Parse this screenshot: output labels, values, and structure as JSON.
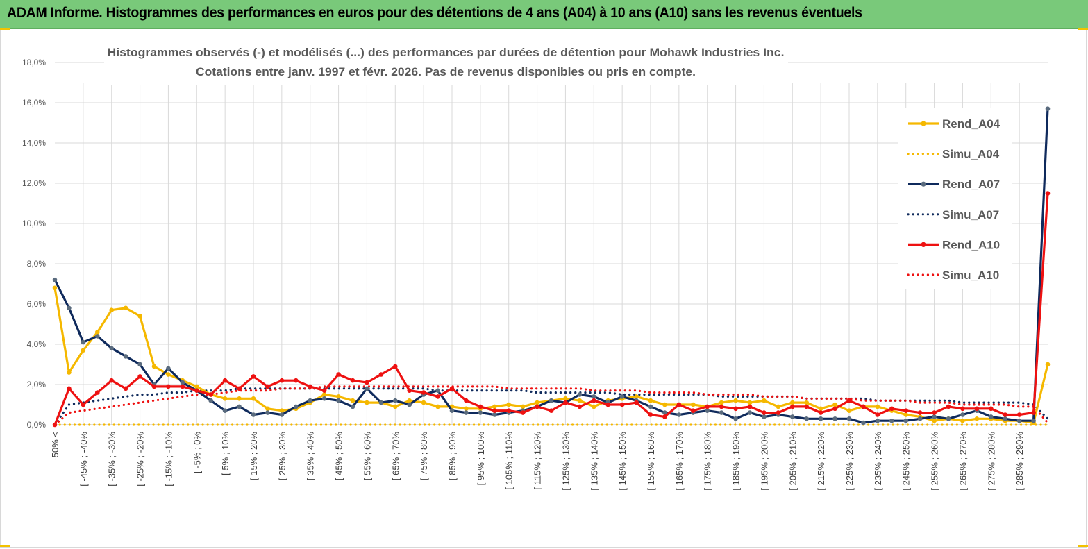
{
  "banner": {
    "title": "ADAM Informe. Histogrammes des performances en euros pour des détentions de 4 ans (A04) à 10 ans (A10) sans les revenus éventuels"
  },
  "chart_data": {
    "type": "line",
    "title": "Histogrammes observés (-) et modélisés (...) des performances par durées de détention pour Mohawk Industries Inc.",
    "subtitle": "Cotations entre janv. 1997 et févr.  2026. Pas de revenus disponibles ou pris en compte.",
    "xlabel": "",
    "ylabel": "",
    "ylim": [
      0,
      18
    ],
    "y_ticks": [
      "0,0%",
      "2,0%",
      "4,0%",
      "6,0%",
      "8,0%",
      "10,0%",
      "12,0%",
      "14,0%",
      "16,0%",
      "18,0%"
    ],
    "y_tick_values": [
      0,
      2,
      4,
      6,
      8,
      10,
      12,
      14,
      16,
      18
    ],
    "legend_position": "right",
    "x_tick_labels": [
      "-50% <",
      "[ -45% ; -40%",
      "[ -35% ; -30%",
      "[ -25% ; -20%",
      "[ -15% ; -10%",
      "[ -5% ; 0%",
      "[ 5% ; 10%",
      "[ 15% ; 20%",
      "[ 25% ; 30%",
      "[ 35% ; 40%",
      "[ 45% ; 50%",
      "[ 55% ; 60%",
      "[ 65% ; 70%",
      "[ 75% ; 80%",
      "[ 85% ; 90%",
      "[ 95% ; 100%",
      "[ 105% ; 110%",
      "[ 115% ; 120%",
      "[ 125% ; 130%",
      "[ 135% ; 140%",
      "[ 145% ; 150%",
      "[ 155% ; 160%",
      "[ 165% ; 170%",
      "[ 175% ; 180%",
      "[ 185% ; 190%",
      "[ 195% ; 200%",
      "[ 205% ; 210%",
      "[ 215% ; 220%",
      "[ 225% ; 230%",
      "[ 235% ; 240%",
      "[ 245% ; 250%",
      "[ 255% ; 260%",
      "[ 265% ; 270%",
      "[ 275% ; 280%",
      "[ 285% ; 290%"
    ],
    "x_tick_category_index": [
      0,
      2,
      4,
      6,
      8,
      10,
      12,
      14,
      16,
      18,
      20,
      22,
      24,
      26,
      28,
      30,
      32,
      34,
      36,
      38,
      40,
      42,
      44,
      46,
      48,
      50,
      52,
      54,
      56,
      58,
      60,
      62,
      64,
      66,
      68
    ],
    "category_count": 71,
    "series": [
      {
        "name": "Rend_A04",
        "style": "solid",
        "markers": true,
        "color": "#f5b800",
        "values": [
          6.8,
          2.6,
          3.7,
          4.6,
          5.7,
          5.8,
          5.4,
          2.9,
          2.5,
          2.2,
          1.9,
          1.5,
          1.3,
          1.3,
          1.3,
          0.8,
          0.7,
          0.8,
          1.1,
          1.5,
          1.4,
          1.2,
          1.1,
          1.1,
          0.9,
          1.2,
          1.1,
          0.9,
          0.9,
          0.8,
          0.8,
          0.9,
          1.0,
          0.9,
          1.1,
          1.2,
          1.3,
          1.2,
          0.9,
          1.2,
          1.3,
          1.4,
          1.2,
          1.0,
          1.0,
          1.0,
          0.9,
          1.1,
          1.2,
          1.1,
          1.2,
          0.9,
          1.1,
          1.1,
          0.8,
          1.0,
          0.7,
          0.9,
          0.9,
          0.7,
          0.5,
          0.4,
          0.2,
          0.3,
          0.2,
          0.3,
          0.3,
          0.2,
          0.2,
          0.1,
          3.0
        ]
      },
      {
        "name": "Simu_A04",
        "style": "dotted",
        "markers": false,
        "color": "#f5b800",
        "values": [
          0.0,
          0.0,
          0.0,
          0.0,
          0.0,
          0.0,
          0.0,
          0.0,
          0.0,
          0.0,
          0.0,
          0.0,
          0.0,
          0.0,
          0.0,
          0.0,
          0.0,
          0.0,
          0.0,
          0.0,
          0.0,
          0.0,
          0.0,
          0.0,
          0.0,
          0.0,
          0.0,
          0.0,
          0.0,
          0.0,
          0.0,
          0.0,
          0.0,
          0.0,
          0.0,
          0.0,
          0.0,
          0.0,
          0.0,
          0.0,
          0.0,
          0.0,
          0.0,
          0.0,
          0.0,
          0.0,
          0.0,
          0.0,
          0.0,
          0.0,
          0.0,
          0.0,
          0.0,
          0.0,
          0.0,
          0.0,
          0.0,
          0.0,
          0.0,
          0.0,
          0.0,
          0.0,
          0.0,
          0.0,
          0.0,
          0.0,
          0.0,
          0.0,
          0.0,
          0.0,
          0.0
        ]
      },
      {
        "name": "Rend_A07",
        "style": "solid",
        "markers": true,
        "color": "#0f2a5c",
        "values": [
          7.2,
          5.8,
          4.1,
          4.4,
          3.8,
          3.4,
          3.0,
          2.0,
          2.8,
          2.1,
          1.7,
          1.2,
          0.7,
          0.9,
          0.5,
          0.6,
          0.5,
          0.9,
          1.2,
          1.3,
          1.2,
          0.9,
          1.8,
          1.1,
          1.2,
          1.0,
          1.5,
          1.7,
          0.7,
          0.6,
          0.6,
          0.5,
          0.6,
          0.7,
          0.9,
          1.2,
          1.1,
          1.5,
          1.4,
          1.1,
          1.4,
          1.2,
          0.9,
          0.6,
          0.5,
          0.6,
          0.7,
          0.6,
          0.3,
          0.6,
          0.4,
          0.5,
          0.4,
          0.3,
          0.3,
          0.3,
          0.3,
          0.1,
          0.2,
          0.2,
          0.2,
          0.3,
          0.4,
          0.3,
          0.5,
          0.7,
          0.4,
          0.3,
          0.2,
          0.2,
          15.7
        ]
      },
      {
        "name": "Simu_A07",
        "style": "dotted",
        "markers": false,
        "color": "#0f2a5c",
        "values": [
          0.0,
          1.0,
          1.1,
          1.2,
          1.3,
          1.4,
          1.5,
          1.5,
          1.6,
          1.6,
          1.7,
          1.7,
          1.7,
          1.8,
          1.8,
          1.8,
          1.8,
          1.8,
          1.8,
          1.8,
          1.8,
          1.8,
          1.8,
          1.8,
          1.8,
          1.8,
          1.8,
          1.7,
          1.7,
          1.7,
          1.7,
          1.7,
          1.7,
          1.7,
          1.6,
          1.6,
          1.6,
          1.6,
          1.6,
          1.6,
          1.5,
          1.5,
          1.5,
          1.5,
          1.5,
          1.5,
          1.5,
          1.4,
          1.4,
          1.4,
          1.4,
          1.4,
          1.4,
          1.3,
          1.3,
          1.3,
          1.3,
          1.3,
          1.2,
          1.2,
          1.2,
          1.2,
          1.2,
          1.2,
          1.1,
          1.1,
          1.1,
          1.1,
          1.1,
          1.0,
          0.3
        ]
      },
      {
        "name": "Rend_A10",
        "style": "solid",
        "markers": true,
        "color": "#ee1111",
        "values": [
          0.0,
          1.8,
          1.0,
          1.6,
          2.2,
          1.8,
          2.4,
          1.9,
          1.9,
          1.9,
          1.7,
          1.5,
          2.2,
          1.8,
          2.4,
          1.9,
          2.2,
          2.2,
          1.9,
          1.7,
          2.5,
          2.2,
          2.1,
          2.5,
          2.9,
          1.7,
          1.6,
          1.4,
          1.8,
          1.2,
          0.9,
          0.7,
          0.7,
          0.6,
          0.9,
          0.7,
          1.1,
          0.9,
          1.2,
          1.0,
          1.0,
          1.1,
          0.5,
          0.4,
          1.0,
          0.7,
          0.9,
          0.9,
          0.8,
          0.9,
          0.6,
          0.6,
          0.9,
          0.9,
          0.6,
          0.8,
          1.2,
          0.9,
          0.5,
          0.8,
          0.7,
          0.6,
          0.6,
          0.9,
          0.8,
          0.8,
          0.8,
          0.5,
          0.5,
          0.6,
          11.5
        ]
      },
      {
        "name": "Simu_A10",
        "style": "dotted",
        "markers": false,
        "color": "#ee1111",
        "values": [
          0.0,
          0.6,
          0.7,
          0.8,
          0.9,
          1.0,
          1.1,
          1.2,
          1.3,
          1.4,
          1.5,
          1.5,
          1.6,
          1.7,
          1.7,
          1.7,
          1.8,
          1.8,
          1.8,
          1.9,
          1.9,
          1.9,
          1.9,
          1.9,
          1.9,
          1.9,
          1.9,
          1.9,
          1.9,
          1.9,
          1.9,
          1.9,
          1.8,
          1.8,
          1.8,
          1.8,
          1.8,
          1.8,
          1.7,
          1.7,
          1.7,
          1.7,
          1.6,
          1.6,
          1.6,
          1.6,
          1.5,
          1.5,
          1.5,
          1.5,
          1.4,
          1.4,
          1.4,
          1.3,
          1.3,
          1.3,
          1.3,
          1.2,
          1.2,
          1.2,
          1.2,
          1.1,
          1.1,
          1.1,
          1.0,
          1.0,
          1.0,
          1.0,
          0.9,
          0.9,
          0.1
        ]
      }
    ]
  }
}
